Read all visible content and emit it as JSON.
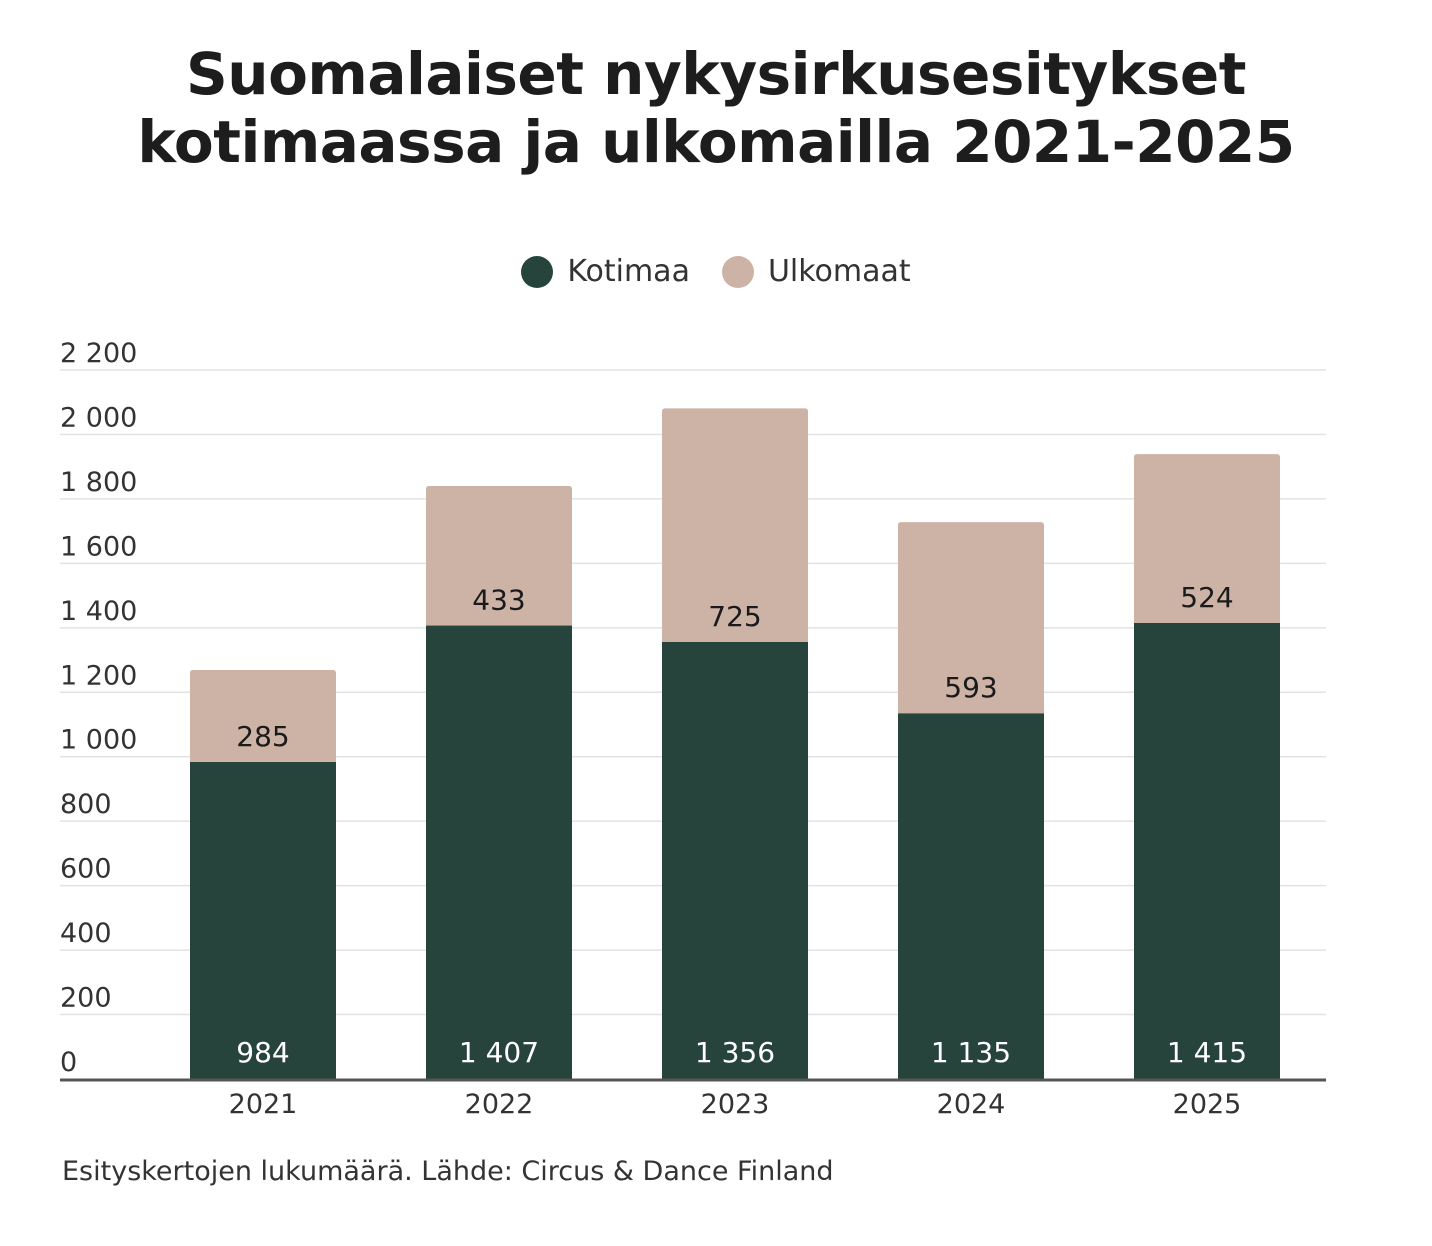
{
  "title_lines": [
    "Suomalaiset nykysirkusesitykset",
    "kotimaassa ja ulkomailla 2021-2025"
  ],
  "source_note": "Esityskertojen lukumäärä. Lähde: Circus & Dance Finland",
  "colors": {
    "kotimaa": "#27443c",
    "ulkomaat": "#cdb2a6",
    "grid": "#e3e3e3",
    "axis": "#555555"
  },
  "chart_data": {
    "type": "bar",
    "stacked": true,
    "categories": [
      "2021",
      "2022",
      "2023",
      "2024",
      "2025"
    ],
    "series": [
      {
        "name": "Kotimaa",
        "values": [
          984,
          1407,
          1356,
          1135,
          1415
        ],
        "labels": [
          "984",
          "1 407",
          "1 356",
          "1 135",
          "1 415"
        ]
      },
      {
        "name": "Ulkomaat",
        "values": [
          285,
          433,
          725,
          593,
          524
        ],
        "labels": [
          "285",
          "433",
          "725",
          "593",
          "524"
        ]
      }
    ],
    "ylim": [
      0,
      2200
    ],
    "yticks": [
      0,
      200,
      400,
      600,
      800,
      1000,
      1200,
      1400,
      1600,
      1800,
      2000,
      2200
    ],
    "ytick_labels": [
      "0",
      "200",
      "400",
      "600",
      "800",
      "1 000",
      "1 200",
      "1 400",
      "1 600",
      "1 800",
      "2 000",
      "2 200"
    ],
    "grid": true,
    "legend_position": "top-center"
  }
}
